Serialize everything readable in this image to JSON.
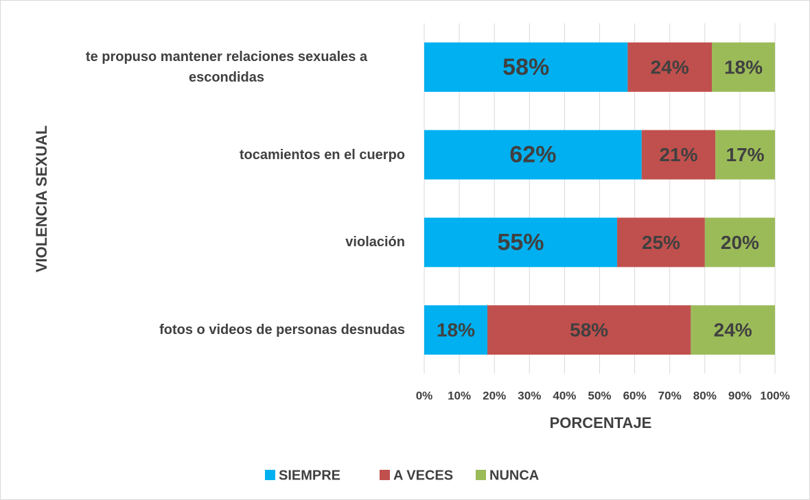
{
  "chart_data": {
    "type": "stacked_bar_horizontal",
    "categories": [
      "te propuso mantener relaciones sexuales a escondidas",
      "tocamientos en el cuerpo",
      "violación",
      "fotos o videos de personas desnudas"
    ],
    "series": [
      {
        "name": "SIEMPRE",
        "color": "#00b0f0",
        "values": [
          58,
          62,
          55,
          18
        ],
        "value_labels": [
          "58%",
          "62%",
          "55%",
          "18%"
        ]
      },
      {
        "name": "A VECES",
        "color": "#c0504d",
        "values": [
          24,
          21,
          25,
          58
        ],
        "value_labels": [
          "24%",
          "21%",
          "25%",
          "58%"
        ]
      },
      {
        "name": "NUNCA",
        "color": "#9bbb59",
        "values": [
          18,
          17,
          20,
          24
        ],
        "value_labels": [
          "18%",
          "17%",
          "20%",
          "24%"
        ]
      }
    ],
    "xlim": [
      0,
      100
    ],
    "xticks": [
      {
        "value": 0,
        "label": "0%"
      },
      {
        "value": 10,
        "label": "10%"
      },
      {
        "value": 20,
        "label": "20%"
      },
      {
        "value": 30,
        "label": "30%"
      },
      {
        "value": 40,
        "label": "40%"
      },
      {
        "value": 50,
        "label": "50%"
      },
      {
        "value": 60,
        "label": "60%"
      },
      {
        "value": 70,
        "label": "70%"
      },
      {
        "value": 80,
        "label": "80%"
      },
      {
        "value": 90,
        "label": "90%"
      },
      {
        "value": 100,
        "label": "100%"
      }
    ],
    "xlabel": "PORCENTAJE",
    "ylabel": "VIOLENCIA SEXUAL",
    "grid": true,
    "legend": "bottom"
  }
}
